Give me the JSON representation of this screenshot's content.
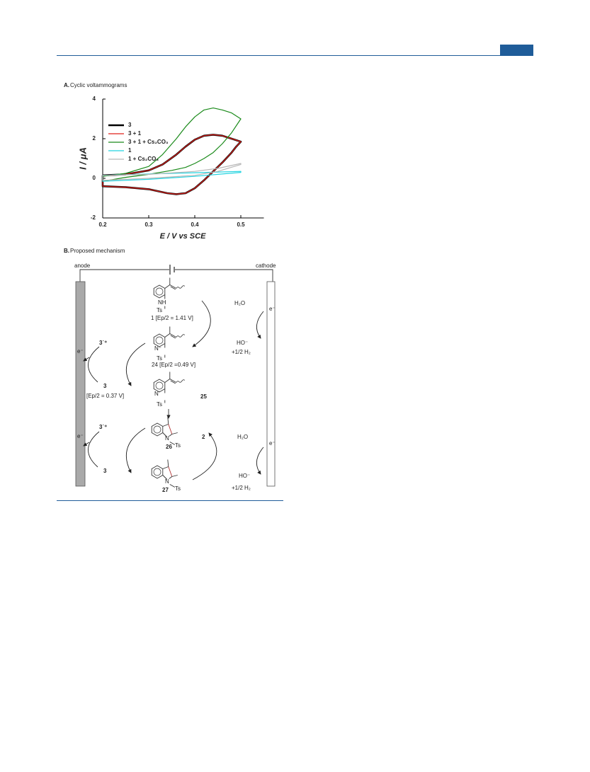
{
  "panel_a": "A.",
  "chart_data": {
    "type": "line",
    "title": "Cyclic voltammograms",
    "x_label": "E / V vs SCE",
    "y_label": "I / μA",
    "xlim": [
      0.2,
      0.55
    ],
    "ylim": [
      -2,
      4
    ],
    "xticks": [
      0.2,
      0.3,
      0.4,
      0.5
    ],
    "yticks": [
      -2,
      0,
      2,
      4
    ],
    "legend": "upper left",
    "series": [
      {
        "name": "3",
        "color": "#000000",
        "linewidth": 2.6,
        "x": [
          0.2,
          0.25,
          0.3,
          0.33,
          0.36,
          0.38,
          0.4,
          0.42,
          0.44,
          0.46,
          0.48,
          0.5,
          0.49,
          0.48,
          0.46,
          0.44,
          0.42,
          0.4,
          0.38,
          0.36,
          0.34,
          0.3,
          0.25,
          0.2,
          0.2
        ],
        "values": [
          0.15,
          0.2,
          0.4,
          0.7,
          1.2,
          1.6,
          1.95,
          2.15,
          2.2,
          2.15,
          2.0,
          1.85,
          1.6,
          1.3,
          0.8,
          0.35,
          -0.1,
          -0.5,
          -0.75,
          -0.8,
          -0.75,
          -0.55,
          -0.45,
          -0.4,
          0.15
        ]
      },
      {
        "name": "3 + 1",
        "color": "#e0201b",
        "linewidth": 1.2,
        "x": [
          0.2,
          0.25,
          0.3,
          0.33,
          0.36,
          0.38,
          0.4,
          0.42,
          0.44,
          0.46,
          0.48,
          0.5,
          0.49,
          0.48,
          0.46,
          0.44,
          0.42,
          0.4,
          0.38,
          0.36,
          0.34,
          0.3,
          0.25,
          0.2,
          0.2
        ],
        "values": [
          0.13,
          0.2,
          0.4,
          0.7,
          1.2,
          1.6,
          1.95,
          2.15,
          2.2,
          2.15,
          2.0,
          1.85,
          1.6,
          1.3,
          0.8,
          0.35,
          -0.1,
          -0.5,
          -0.75,
          -0.8,
          -0.75,
          -0.55,
          -0.45,
          -0.4,
          0.13
        ]
      },
      {
        "name": "3 + 1 + Cs₂CO₃",
        "color": "#1a8a1a",
        "linewidth": 1.2,
        "x": [
          0.2,
          0.25,
          0.3,
          0.33,
          0.36,
          0.38,
          0.4,
          0.42,
          0.44,
          0.46,
          0.48,
          0.5,
          0.48,
          0.46,
          0.44,
          0.42,
          0.4,
          0.38,
          0.35,
          0.3,
          0.25,
          0.2,
          0.2
        ],
        "values": [
          0.1,
          0.25,
          0.6,
          1.2,
          2.0,
          2.6,
          3.1,
          3.45,
          3.55,
          3.45,
          3.3,
          3.0,
          2.3,
          1.75,
          1.3,
          1.0,
          0.75,
          0.55,
          0.4,
          0.2,
          0.05,
          -0.15,
          0.1
        ]
      },
      {
        "name": "1",
        "color": "#22d3e0",
        "linewidth": 1.2,
        "x": [
          0.2,
          0.3,
          0.4,
          0.5,
          0.5,
          0.4,
          0.3,
          0.2,
          0.2
        ],
        "values": [
          0.15,
          0.22,
          0.28,
          0.35,
          0.3,
          0.1,
          -0.05,
          -0.15,
          0.15
        ]
      },
      {
        "name": "1 + Cs₂CO₃",
        "color": "#b8b8b8",
        "linewidth": 1.2,
        "x": [
          0.2,
          0.3,
          0.4,
          0.45,
          0.5,
          0.5,
          0.45,
          0.4,
          0.3,
          0.2,
          0.2
        ],
        "values": [
          0.15,
          0.2,
          0.35,
          0.5,
          0.75,
          0.7,
          0.35,
          0.15,
          0.0,
          -0.1,
          0.15
        ]
      }
    ]
  },
  "mechanism": {
    "label": "B.",
    "title": "Proposed mechanism",
    "anode": "anode",
    "cathode": "cathode",
    "compounds": [
      {
        "atom": "NH",
        "substituent": "Ts",
        "label": "1 [Ep/2 = 1.41 V]"
      },
      {
        "atom": "N⁻",
        "substituent": "Ts",
        "label": "24 [Ep/2 =0.49 V]"
      },
      {
        "atom": "N˙",
        "substituent": "Ts",
        "label": "25"
      },
      {
        "atom": "N",
        "substituent": "Ts",
        "label": "26"
      },
      {
        "atom": "N",
        "substituent": "Ts",
        "label": "27"
      }
    ],
    "anode_cycles": [
      {
        "oxidized": "3˙⁺",
        "electron": "e⁻",
        "reduced": "3",
        "potential": "[Ep/2 = 0.37 V]"
      },
      {
        "oxidized": "3˙⁺",
        "electron": "e⁻",
        "reduced": "3"
      }
    ],
    "cathode_cycles": [
      {
        "electron": "e⁻",
        "reactant": "H₂O",
        "products": [
          "HO⁻",
          "+1/2 H₂"
        ]
      },
      {
        "catalyst": "2",
        "electron": "e⁻",
        "reactant": "H₂O",
        "products": [
          "HO⁻",
          "+1/2 H₂"
        ]
      }
    ]
  }
}
